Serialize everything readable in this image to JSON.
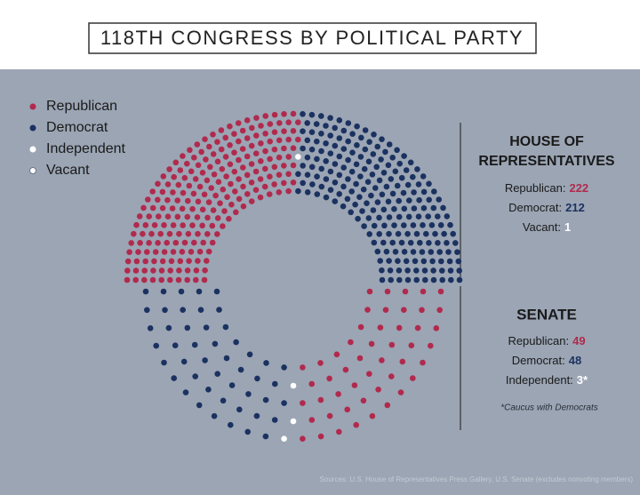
{
  "title": "118TH CONGRESS BY POLITICAL PARTY",
  "legend": [
    {
      "name": "Republican",
      "color": "#b12a4d"
    },
    {
      "name": "Democrat",
      "color": "#1b3260"
    },
    {
      "name": "Independent",
      "color": "#ffffff"
    },
    {
      "name": "Vacant",
      "color": "#ffffff"
    }
  ],
  "chart_data": [
    {
      "type": "parliament",
      "title": "HOUSE OF REPRESENTATIVES",
      "categories": [
        "Republican:",
        "Democrat:",
        "Vacant:"
      ],
      "values": [
        222,
        212,
        1
      ],
      "colors": [
        "#b12a4d",
        "#1b3260",
        "#ffffff"
      ]
    },
    {
      "type": "parliament",
      "title": "SENATE",
      "categories": [
        "Republican:",
        "Democrat:",
        "Independent:"
      ],
      "values": [
        49,
        48,
        3
      ],
      "value_labels": [
        "49",
        "48",
        "3*"
      ],
      "colors": [
        "#b12a4d",
        "#1b3260",
        "#ffffff"
      ],
      "note": "*Caucus with Democrats"
    }
  ],
  "source": "Sources: U.S. House of Representatives Press Gallery, U.S. Senate (excludes nonvoting members)"
}
